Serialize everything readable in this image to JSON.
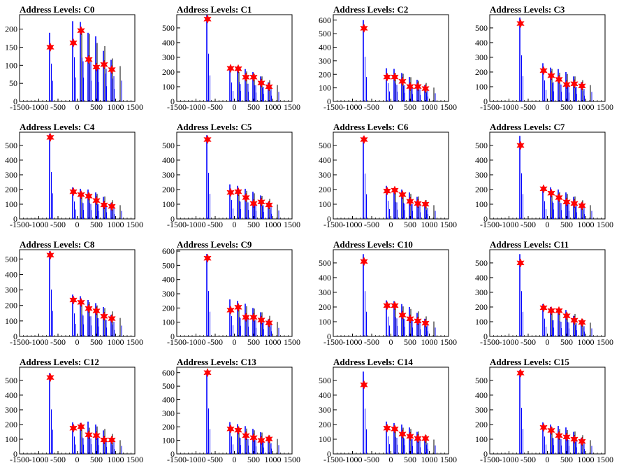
{
  "chart_data": [
    {
      "type": "bar",
      "title": "Address Levels: C0",
      "xlim": [
        -1500,
        1500
      ],
      "ylim": [
        0,
        240
      ],
      "yticks": [
        0,
        50,
        100,
        150,
        200
      ],
      "xticks": [
        -1500,
        -1000,
        -500,
        0,
        500,
        1000,
        1500
      ],
      "peaks": [
        {
          "x": -700,
          "h": 190,
          "v": 150
        },
        {
          "x": -100,
          "h": 222,
          "v": 162
        },
        {
          "x": 100,
          "h": 220,
          "v": 196
        },
        {
          "x": 300,
          "h": 190,
          "v": 116
        },
        {
          "x": 500,
          "h": 180,
          "v": 95
        },
        {
          "x": 700,
          "h": 140,
          "v": 102
        },
        {
          "x": 900,
          "h": 115,
          "v": 88
        }
      ]
    },
    {
      "type": "bar",
      "title": "Address Levels: C1",
      "xlim": [
        -1500,
        1500
      ],
      "ylim": [
        0,
        590
      ],
      "yticks": [
        0,
        100,
        200,
        300,
        400,
        500
      ],
      "xticks": [
        -1500,
        -1000,
        -500,
        0,
        500,
        1000,
        1500
      ],
      "peaks": [
        {
          "x": -700,
          "h": 590,
          "v": 560
        },
        {
          "x": -100,
          "h": 235,
          "v": 225
        },
        {
          "x": 100,
          "h": 240,
          "v": 222
        },
        {
          "x": 300,
          "h": 220,
          "v": 165
        },
        {
          "x": 500,
          "h": 200,
          "v": 165
        },
        {
          "x": 700,
          "h": 170,
          "v": 125
        },
        {
          "x": 900,
          "h": 130,
          "v": 100
        }
      ]
    },
    {
      "type": "bar",
      "title": "Address Levels: C2",
      "xlim": [
        -1500,
        1500
      ],
      "ylim": [
        0,
        640
      ],
      "yticks": [
        0,
        100,
        200,
        300,
        400,
        500,
        600
      ],
      "xticks": [
        -1500,
        -1000,
        -500,
        0,
        500,
        1000,
        1500
      ],
      "peaks": [
        {
          "x": -700,
          "h": 600,
          "v": 540
        },
        {
          "x": -100,
          "h": 245,
          "v": 180
        },
        {
          "x": 100,
          "h": 240,
          "v": 180
        },
        {
          "x": 300,
          "h": 210,
          "v": 148
        },
        {
          "x": 500,
          "h": 180,
          "v": 110
        },
        {
          "x": 700,
          "h": 160,
          "v": 110
        },
        {
          "x": 900,
          "h": 120,
          "v": 95
        }
      ]
    },
    {
      "type": "bar",
      "title": "Address Levels: C3",
      "xlim": [
        -1500,
        1500
      ],
      "ylim": [
        0,
        590
      ],
      "yticks": [
        0,
        100,
        200,
        300,
        400,
        500
      ],
      "xticks": [
        -1500,
        -1000,
        -500,
        0,
        500,
        1000,
        1500
      ],
      "peaks": [
        {
          "x": -700,
          "h": 570,
          "v": 530
        },
        {
          "x": -100,
          "h": 260,
          "v": 210
        },
        {
          "x": 100,
          "h": 230,
          "v": 175
        },
        {
          "x": 300,
          "h": 220,
          "v": 150
        },
        {
          "x": 500,
          "h": 200,
          "v": 115
        },
        {
          "x": 700,
          "h": 170,
          "v": 120
        },
        {
          "x": 900,
          "h": 130,
          "v": 105
        }
      ]
    },
    {
      "type": "bar",
      "title": "Address Levels: C4",
      "xlim": [
        -1500,
        1500
      ],
      "ylim": [
        0,
        590
      ],
      "yticks": [
        0,
        100,
        200,
        300,
        400,
        500
      ],
      "xticks": [
        -1500,
        -1000,
        -500,
        0,
        500,
        1000,
        1500
      ],
      "peaks": [
        {
          "x": -700,
          "h": 580,
          "v": 555
        },
        {
          "x": -100,
          "h": 215,
          "v": 185
        },
        {
          "x": 100,
          "h": 205,
          "v": 165
        },
        {
          "x": 300,
          "h": 200,
          "v": 155
        },
        {
          "x": 500,
          "h": 180,
          "v": 125
        },
        {
          "x": 700,
          "h": 150,
          "v": 95
        },
        {
          "x": 900,
          "h": 110,
          "v": 85
        }
      ]
    },
    {
      "type": "bar",
      "title": "Address Levels: C5",
      "xlim": [
        -1500,
        1500
      ],
      "ylim": [
        0,
        590
      ],
      "yticks": [
        0,
        100,
        200,
        300,
        400,
        500
      ],
      "xticks": [
        -1500,
        -1000,
        -500,
        0,
        500,
        1000,
        1500
      ],
      "peaks": [
        {
          "x": -700,
          "h": 570,
          "v": 540
        },
        {
          "x": -100,
          "h": 235,
          "v": 180
        },
        {
          "x": 100,
          "h": 225,
          "v": 185
        },
        {
          "x": 300,
          "h": 205,
          "v": 145
        },
        {
          "x": 500,
          "h": 185,
          "v": 105
        },
        {
          "x": 700,
          "h": 160,
          "v": 115
        },
        {
          "x": 900,
          "h": 115,
          "v": 95
        }
      ]
    },
    {
      "type": "bar",
      "title": "Address Levels: C6",
      "xlim": [
        -1500,
        1500
      ],
      "ylim": [
        0,
        590
      ],
      "yticks": [
        0,
        100,
        200,
        300,
        400,
        500
      ],
      "xticks": [
        -1500,
        -1000,
        -500,
        0,
        500,
        1000,
        1500
      ],
      "peaks": [
        {
          "x": -700,
          "h": 560,
          "v": 540
        },
        {
          "x": -100,
          "h": 225,
          "v": 190
        },
        {
          "x": 100,
          "h": 210,
          "v": 195
        },
        {
          "x": 300,
          "h": 200,
          "v": 165
        },
        {
          "x": 500,
          "h": 180,
          "v": 120
        },
        {
          "x": 700,
          "h": 150,
          "v": 105
        },
        {
          "x": 900,
          "h": 110,
          "v": 100
        }
      ]
    },
    {
      "type": "bar",
      "title": "Address Levels: C7",
      "xlim": [
        -1500,
        1500
      ],
      "ylim": [
        0,
        590
      ],
      "yticks": [
        0,
        100,
        200,
        300,
        400,
        500
      ],
      "xticks": [
        -1500,
        -1000,
        -500,
        0,
        500,
        1000,
        1500
      ],
      "peaks": [
        {
          "x": -700,
          "h": 565,
          "v": 500
        },
        {
          "x": -100,
          "h": 220,
          "v": 205
        },
        {
          "x": 100,
          "h": 215,
          "v": 175
        },
        {
          "x": 300,
          "h": 200,
          "v": 145
        },
        {
          "x": 500,
          "h": 180,
          "v": 115
        },
        {
          "x": 700,
          "h": 150,
          "v": 105
        },
        {
          "x": 900,
          "h": 110,
          "v": 90
        }
      ]
    },
    {
      "type": "bar",
      "title": "Address Levels: C8",
      "xlim": [
        -1500,
        1500
      ],
      "ylim": [
        0,
        560
      ],
      "yticks": [
        0,
        100,
        200,
        300,
        400,
        500
      ],
      "xticks": [
        -1500,
        -1000,
        -500,
        0,
        500,
        1000,
        1500
      ],
      "peaks": [
        {
          "x": -700,
          "h": 550,
          "v": 525
        },
        {
          "x": -100,
          "h": 270,
          "v": 235
        },
        {
          "x": 100,
          "h": 260,
          "v": 220
        },
        {
          "x": 300,
          "h": 235,
          "v": 180
        },
        {
          "x": 500,
          "h": 215,
          "v": 165
        },
        {
          "x": 700,
          "h": 190,
          "v": 130
        },
        {
          "x": 900,
          "h": 140,
          "v": 115
        }
      ]
    },
    {
      "type": "bar",
      "title": "Address Levels: C9",
      "xlim": [
        -1500,
        1500
      ],
      "ylim": [
        0,
        610
      ],
      "yticks": [
        0,
        100,
        200,
        300,
        400,
        500,
        600
      ],
      "xticks": [
        -1500,
        -1000,
        -500,
        0,
        500,
        1000,
        1500
      ],
      "peaks": [
        {
          "x": -700,
          "h": 580,
          "v": 550
        },
        {
          "x": -100,
          "h": 260,
          "v": 185
        },
        {
          "x": 100,
          "h": 250,
          "v": 205
        },
        {
          "x": 300,
          "h": 230,
          "v": 135
        },
        {
          "x": 500,
          "h": 200,
          "v": 135
        },
        {
          "x": 700,
          "h": 170,
          "v": 115
        },
        {
          "x": 900,
          "h": 120,
          "v": 95
        }
      ]
    },
    {
      "type": "bar",
      "title": "Address Levels: C10",
      "xlim": [
        -1500,
        1500
      ],
      "ylim": [
        0,
        590
      ],
      "yticks": [
        0,
        100,
        200,
        300,
        400,
        500
      ],
      "xticks": [
        -1500,
        -1000,
        -500,
        0,
        500,
        1000,
        1500
      ],
      "peaks": [
        {
          "x": -700,
          "h": 560,
          "v": 510
        },
        {
          "x": -100,
          "h": 245,
          "v": 210
        },
        {
          "x": 100,
          "h": 240,
          "v": 210
        },
        {
          "x": 300,
          "h": 220,
          "v": 145
        },
        {
          "x": 500,
          "h": 200,
          "v": 120
        },
        {
          "x": 700,
          "h": 160,
          "v": 105
        },
        {
          "x": 900,
          "h": 120,
          "v": 90
        }
      ]
    },
    {
      "type": "bar",
      "title": "Address Levels: C11",
      "xlim": [
        -1500,
        1500
      ],
      "ylim": [
        0,
        590
      ],
      "yticks": [
        0,
        100,
        200,
        300,
        400,
        500
      ],
      "xticks": [
        -1500,
        -1000,
        -500,
        0,
        500,
        1000,
        1500
      ],
      "peaks": [
        {
          "x": -700,
          "h": 560,
          "v": 500
        },
        {
          "x": -100,
          "h": 220,
          "v": 195
        },
        {
          "x": 100,
          "h": 200,
          "v": 175
        },
        {
          "x": 300,
          "h": 190,
          "v": 175
        },
        {
          "x": 500,
          "h": 180,
          "v": 140
        },
        {
          "x": 700,
          "h": 140,
          "v": 110
        },
        {
          "x": 900,
          "h": 110,
          "v": 95
        }
      ]
    },
    {
      "type": "bar",
      "title": "Address Levels: C12",
      "xlim": [
        -1500,
        1500
      ],
      "ylim": [
        0,
        590
      ],
      "yticks": [
        0,
        100,
        200,
        300,
        400,
        500
      ],
      "xticks": [
        -1500,
        -1000,
        -500,
        0,
        500,
        1000,
        1500
      ],
      "peaks": [
        {
          "x": -700,
          "h": 550,
          "v": 520
        },
        {
          "x": -100,
          "h": 215,
          "v": 175
        },
        {
          "x": 100,
          "h": 210,
          "v": 185
        },
        {
          "x": 300,
          "h": 220,
          "v": 130
        },
        {
          "x": 500,
          "h": 200,
          "v": 125
        },
        {
          "x": 700,
          "h": 160,
          "v": 95
        },
        {
          "x": 900,
          "h": 110,
          "v": 95
        }
      ]
    },
    {
      "type": "bar",
      "title": "Address Levels: C13",
      "xlim": [
        -1500,
        1500
      ],
      "ylim": [
        0,
        640
      ],
      "yticks": [
        0,
        100,
        200,
        300,
        400,
        500,
        600
      ],
      "xticks": [
        -1500,
        -1000,
        -500,
        0,
        500,
        1000,
        1500
      ],
      "peaks": [
        {
          "x": -700,
          "h": 610,
          "v": 600
        },
        {
          "x": -100,
          "h": 235,
          "v": 185
        },
        {
          "x": 100,
          "h": 220,
          "v": 175
        },
        {
          "x": 300,
          "h": 205,
          "v": 135
        },
        {
          "x": 500,
          "h": 185,
          "v": 120
        },
        {
          "x": 700,
          "h": 160,
          "v": 100
        },
        {
          "x": 900,
          "h": 130,
          "v": 110
        }
      ]
    },
    {
      "type": "bar",
      "title": "Address Levels: C14",
      "xlim": [
        -1500,
        1500
      ],
      "ylim": [
        0,
        590
      ],
      "yticks": [
        0,
        100,
        200,
        300,
        400,
        500
      ],
      "xticks": [
        -1500,
        -1000,
        -500,
        0,
        500,
        1000,
        1500
      ],
      "peaks": [
        {
          "x": -700,
          "h": 560,
          "v": 470
        },
        {
          "x": -100,
          "h": 220,
          "v": 175
        },
        {
          "x": 100,
          "h": 210,
          "v": 170
        },
        {
          "x": 300,
          "h": 200,
          "v": 135
        },
        {
          "x": 500,
          "h": 180,
          "v": 120
        },
        {
          "x": 700,
          "h": 150,
          "v": 105
        },
        {
          "x": 900,
          "h": 115,
          "v": 105
        }
      ]
    },
    {
      "type": "bar",
      "title": "Address Levels: C15",
      "xlim": [
        -1500,
        1500
      ],
      "ylim": [
        0,
        590
      ],
      "yticks": [
        0,
        100,
        200,
        300,
        400,
        500
      ],
      "xticks": [
        -1500,
        -1000,
        -500,
        0,
        500,
        1000,
        1500
      ],
      "peaks": [
        {
          "x": -700,
          "h": 570,
          "v": 550
        },
        {
          "x": -100,
          "h": 215,
          "v": 180
        },
        {
          "x": 100,
          "h": 200,
          "v": 160
        },
        {
          "x": 300,
          "h": 190,
          "v": 125
        },
        {
          "x": 500,
          "h": 180,
          "v": 115
        },
        {
          "x": 700,
          "h": 150,
          "v": 100
        },
        {
          "x": 900,
          "h": 110,
          "v": 85
        }
      ]
    }
  ],
  "colors": {
    "bars": "#0000ff",
    "dark_bars": "#000000",
    "markers": "#ff0000",
    "axis": "#000000"
  }
}
